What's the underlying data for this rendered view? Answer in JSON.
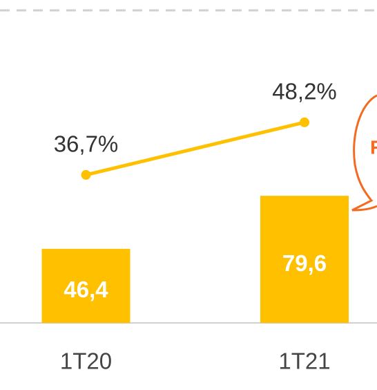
{
  "chart_data": {
    "type": "bar-line",
    "categories": [
      "1T20",
      "1T21"
    ],
    "series": [
      {
        "type": "bar",
        "color": "#ffc000",
        "values": [
          46.4,
          79.6
        ],
        "value_labels": [
          "46,4",
          "79,6"
        ]
      },
      {
        "type": "line",
        "color": "#ffc000",
        "values": [
          36.7,
          48.2
        ],
        "value_labels": [
          "36,7%",
          "48,2%"
        ]
      }
    ],
    "annotation": "R"
  }
}
